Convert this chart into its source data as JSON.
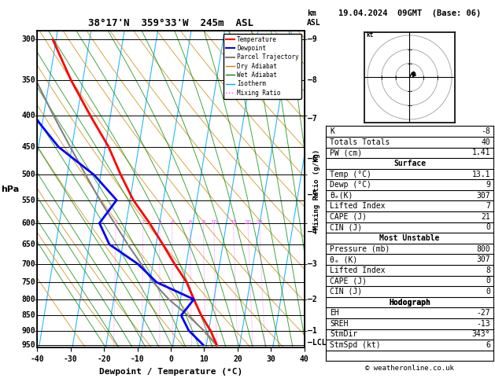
{
  "title_left": "38°17'N  359°33'W  245m  ASL",
  "title_right": "19.04.2024  09GMT  (Base: 06)",
  "xlabel": "Dewpoint / Temperature (°C)",
  "xlim": [
    -40,
    40
  ],
  "pressure_levels": [
    300,
    350,
    400,
    450,
    500,
    550,
    600,
    650,
    700,
    750,
    800,
    850,
    900,
    950
  ],
  "pmin": 290,
  "pmax": 960,
  "skew": 30.0,
  "temp_profile_p": [
    950,
    900,
    850,
    800,
    750,
    700,
    650,
    600,
    550,
    500,
    450,
    400,
    350,
    300
  ],
  "temp_profile_t": [
    13.1,
    10.5,
    7.0,
    4.0,
    1.0,
    -3.5,
    -8.0,
    -13.0,
    -19.0,
    -24.0,
    -29.0,
    -36.0,
    -43.5,
    -51.0
  ],
  "dewp_profile_p": [
    950,
    900,
    850,
    800,
    750,
    700,
    650,
    600,
    550,
    500,
    450,
    400,
    350,
    300
  ],
  "dewp_profile_t": [
    9.0,
    4.0,
    1.0,
    4.0,
    -8.0,
    -14.5,
    -24.0,
    -28.0,
    -24.0,
    -32.0,
    -44.0,
    -53.0,
    -57.0,
    -64.0
  ],
  "parcel_profile_p": [
    950,
    900,
    850,
    800,
    750,
    700,
    650,
    600,
    550,
    500,
    450,
    400,
    350,
    300
  ],
  "parcel_profile_t": [
    13.1,
    8.5,
    3.0,
    -3.5,
    -9.0,
    -13.5,
    -18.5,
    -23.5,
    -29.0,
    -34.5,
    -40.5,
    -47.0,
    -54.0,
    -61.5
  ],
  "bg_color": "#ffffff",
  "temp_color": "#ff0000",
  "dewp_color": "#0000ff",
  "parcel_color": "#808080",
  "dry_adiabat_color": "#cc8800",
  "wet_adiabat_color": "#008800",
  "isotherm_color": "#00aaff",
  "mixing_ratio_color": "#ff44ff",
  "mixing_ratio_lines": [
    1,
    2,
    3,
    4,
    6,
    8,
    10,
    15,
    20,
    25
  ],
  "km_ticks": {
    "9": 300,
    "8": 350,
    "7": 405,
    "6": 470,
    "5": 540,
    "4": 620,
    "3": 700,
    "2": 800,
    "1": 900
  },
  "lcl_pressure": 942,
  "stats_k": "-8",
  "stats_tt": "40",
  "stats_pw": "1.41",
  "surf_temp": "13.1",
  "surf_dewp": "9",
  "surf_theta_e": "307",
  "surf_li": "7",
  "surf_cape": "21",
  "surf_cin": "0",
  "mu_pressure": "800",
  "mu_theta_e": "307",
  "mu_li": "8",
  "mu_cape": "0",
  "mu_cin": "0",
  "hodo_eh": "-27",
  "hodo_sreh": "-13",
  "hodo_stmdir": "343°",
  "hodo_stmspd": "6",
  "copyright": "© weatheronline.co.uk"
}
